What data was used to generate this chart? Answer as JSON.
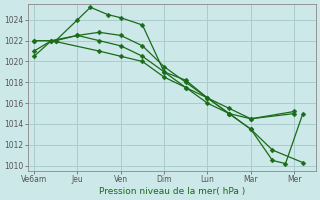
{
  "background_color": "#cce8e8",
  "grid_color": "#aacccc",
  "line_color": "#1a6b1a",
  "marker_color": "#1a6b1a",
  "xlabel": "Pression niveau de la mer( hPa )",
  "xlabels": [
    "Ve6am",
    "Jeu",
    "Ven",
    "Dim",
    "Lun",
    "Mar",
    "Mer"
  ],
  "xtick_pos": [
    0,
    1,
    2,
    3,
    4,
    5,
    6
  ],
  "ylim": [
    1009.5,
    1025.5
  ],
  "yticks": [
    1010,
    1012,
    1014,
    1016,
    1018,
    1020,
    1022,
    1024
  ],
  "series": [
    {
      "x": [
        0.0,
        0.5,
        1.0,
        1.3,
        1.7,
        2.0,
        2.5,
        3.0,
        3.5,
        4.0,
        4.5,
        5.0,
        6.0
      ],
      "y": [
        1022.0,
        1022.0,
        1024.0,
        1025.2,
        1024.5,
        1024.2,
        1023.5,
        1019.0,
        1018.2,
        1016.5,
        1015.0,
        1014.5,
        1015.0
      ]
    },
    {
      "x": [
        0.0,
        0.5,
        1.0,
        1.5,
        2.0,
        2.5,
        3.0,
        3.5,
        4.0,
        4.5,
        5.0,
        6.0
      ],
      "y": [
        1022.0,
        1022.0,
        1022.5,
        1022.8,
        1022.5,
        1021.5,
        1019.5,
        1018.0,
        1016.5,
        1015.5,
        1014.5,
        1015.2
      ]
    },
    {
      "x": [
        0.0,
        0.4,
        1.0,
        1.5,
        2.0,
        2.5,
        3.0,
        3.5,
        4.0,
        4.5,
        5.0,
        5.5,
        6.2
      ],
      "y": [
        1021.0,
        1022.0,
        1022.5,
        1022.0,
        1021.5,
        1020.5,
        1019.0,
        1017.5,
        1016.5,
        1015.0,
        1013.5,
        1011.5,
        1010.3
      ]
    },
    {
      "x": [
        0.0,
        0.4,
        1.5,
        2.0,
        2.5,
        3.0,
        3.5,
        4.0,
        4.5,
        5.0,
        5.5,
        5.8,
        6.2
      ],
      "y": [
        1020.5,
        1022.0,
        1021.0,
        1020.5,
        1020.0,
        1018.5,
        1017.5,
        1016.0,
        1015.0,
        1013.5,
        1010.5,
        1010.2,
        1015.0
      ]
    }
  ]
}
